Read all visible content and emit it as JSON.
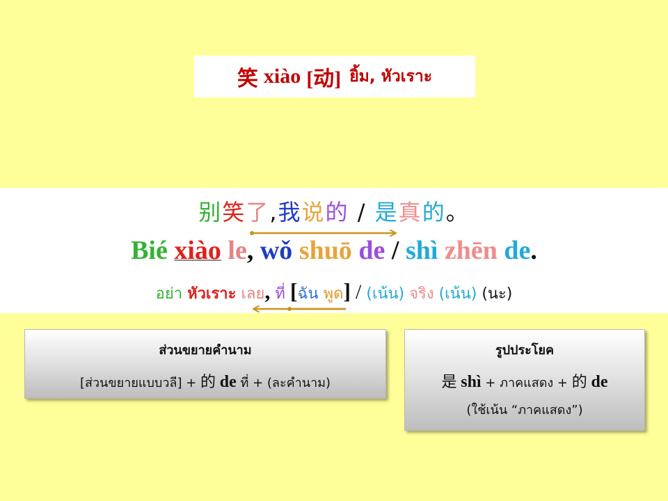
{
  "title": {
    "hanzi": "笑",
    "pinyin": "xiào",
    "pos": "[动]",
    "thai": "ยิ้ม, หัวเราะ"
  },
  "sentence": {
    "hanzi": [
      {
        "t": "别",
        "color": "#33B233"
      },
      {
        "t": "笑",
        "color": "#E0201B"
      },
      {
        "t": "了",
        "color": "#E58484"
      },
      {
        "t": ",",
        "color": "#111111"
      },
      {
        "t": "我",
        "color": "#1E3CC8"
      },
      {
        "t": "说",
        "color": "#E8A33A"
      },
      {
        "t": "的",
        "color": "#9B4DE0"
      },
      {
        "t": " / ",
        "color": "#111111"
      },
      {
        "t": "是",
        "color": "#22A9D6"
      },
      {
        "t": "真",
        "color": "#F08C8C"
      },
      {
        "t": "的",
        "color": "#22A9D6"
      },
      {
        "t": "。",
        "color": "#111111"
      }
    ],
    "pinyin": {
      "bie": "Bié",
      "xiao": "xiào",
      "le": "le",
      "comma": ",",
      "wo": "wǒ",
      "shuo": "shuō",
      "de1": "de",
      "slash": "/",
      "shi": "shì",
      "zhen": "zhēn",
      "de2": "de",
      "period": "."
    },
    "thai": {
      "ya": "อย่า",
      "huarao": "หัวเราะ",
      "loei": "เลย",
      "comma": ",",
      "thi": "ที่",
      "open_bracket": "[",
      "chan": "ฉัน",
      "phut": "พูด",
      "close_bracket": "]",
      "slash": "/",
      "nen1": "(เน้น)",
      "jing": "จริง",
      "nen2": "(เน้น)",
      "na": "(นะ)"
    }
  },
  "box_modifier": {
    "heading": "ส่วนขยายคำนาม",
    "part1": "[ส่วนขยายแบบวลี]  +",
    "hanzi": "的",
    "latin": "de",
    "part2": "ที่ + (ละคำนาม)"
  },
  "box_pattern": {
    "heading": "รูปประโยค",
    "hanzi1": "是",
    "latin1": "shì",
    "middle": "+ ภาคแสดง +",
    "hanzi2": "的",
    "latin2": "de",
    "note": "(ใช้เน้น “ภาคแสดง”)"
  },
  "colors": {
    "background": "#FFFF99",
    "arrow": "#C9961E",
    "title": "#C00000"
  }
}
